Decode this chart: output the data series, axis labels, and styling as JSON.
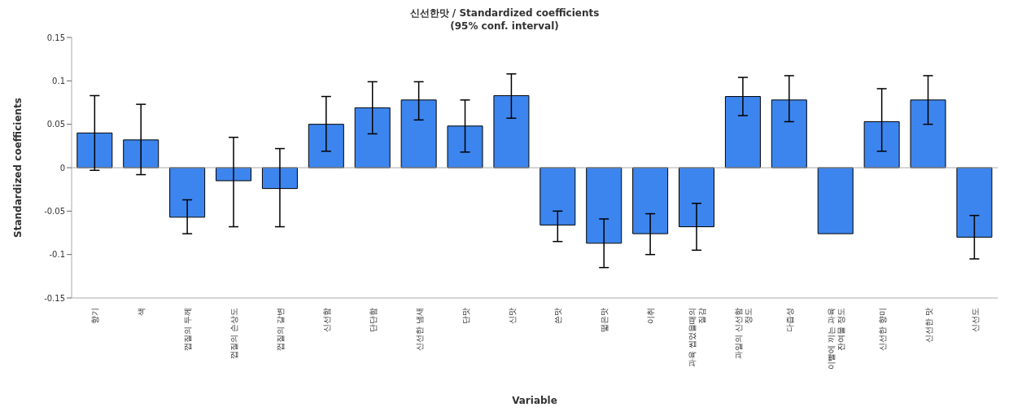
{
  "chart_data": {
    "type": "bar",
    "title": "신선한맛 / Standardized coefficients",
    "subtitle": "(95% conf. interval)",
    "xlabel": "Variable",
    "ylabel": "Standardized coefficients",
    "categories": [
      "향기",
      "색",
      "껍질의 두께",
      "껍질의 손상도",
      "껍질의 갈변",
      "신선함",
      "단단함",
      "신선한 냄새",
      "단맛",
      "신맛",
      "쓴맛",
      "떫은맛",
      "이취",
      "과육 씹었을때의 질감",
      "과일의 신선함 정도",
      "다즙성",
      "이빨에 끼는 과육 잔여물 정도",
      "신선한 향미",
      "신선한 맛",
      "신선도"
    ],
    "values": [
      0.04,
      0.032,
      -0.057,
      -0.015,
      -0.024,
      0.05,
      0.069,
      0.078,
      0.048,
      0.083,
      -0.066,
      -0.087,
      -0.076,
      -0.068,
      0.082,
      0.078,
      -0.076,
      0.053,
      0.078,
      -0.08
    ],
    "errors": [
      [
        -0.003,
        0.083
      ],
      [
        -0.008,
        0.073
      ],
      [
        -0.076,
        -0.037
      ],
      [
        -0.068,
        0.035
      ],
      [
        -0.068,
        0.022
      ],
      [
        0.019,
        0.082
      ],
      [
        0.039,
        0.099
      ],
      [
        0.055,
        0.099
      ],
      [
        0.018,
        0.078
      ],
      [
        0.057,
        0.108
      ],
      [
        -0.085,
        -0.05
      ],
      [
        -0.115,
        -0.059
      ],
      [
        -0.1,
        -0.053
      ],
      [
        -0.095,
        -0.041
      ],
      [
        0.06,
        0.104
      ],
      [
        0.053,
        0.106
      ],
      null,
      [
        0.019,
        0.091
      ],
      [
        0.05,
        0.106
      ],
      [
        -0.105,
        -0.055
      ]
    ],
    "color": "#3d85ee",
    "ylim": [
      -0.15,
      0.15
    ],
    "yticks": [
      -0.15,
      -0.1,
      -0.05,
      0,
      0.05,
      0.1,
      0.15
    ],
    "ref_lines": [
      {
        "axis": "y",
        "value": 0,
        "color": "#aaaaaa"
      }
    ],
    "grid": false
  }
}
